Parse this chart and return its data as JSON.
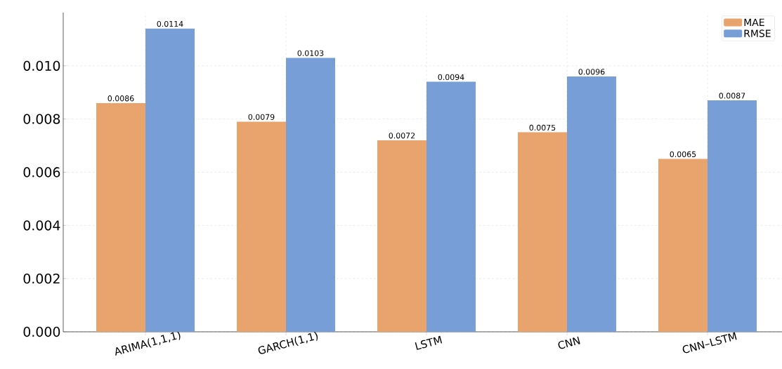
{
  "chart_data": {
    "type": "bar",
    "categories": [
      "ARIMA(1,1,1)",
      "GARCH(1,1)",
      "LSTM",
      "CNN",
      "CNN–LSTM"
    ],
    "series": [
      {
        "name": "MAE",
        "color": "#e8a46c",
        "values": [
          0.0086,
          0.0079,
          0.0072,
          0.0075,
          0.0065
        ]
      },
      {
        "name": "RMSE",
        "color": "#779ed6",
        "values": [
          0.0114,
          0.0103,
          0.0094,
          0.0096,
          0.0087
        ]
      }
    ],
    "ylim": [
      0,
      0.012
    ],
    "yticks": [
      {
        "value": 0,
        "label": "0.000"
      },
      {
        "value": 0.002,
        "label": "0.002"
      },
      {
        "value": 0.004,
        "label": "0.004"
      },
      {
        "value": 0.006,
        "label": "0.006"
      },
      {
        "value": 0.008,
        "label": "0.008"
      },
      {
        "value": 0.01,
        "label": "0.010"
      }
    ],
    "data_labels": true,
    "grid": true,
    "legend": "top right"
  }
}
